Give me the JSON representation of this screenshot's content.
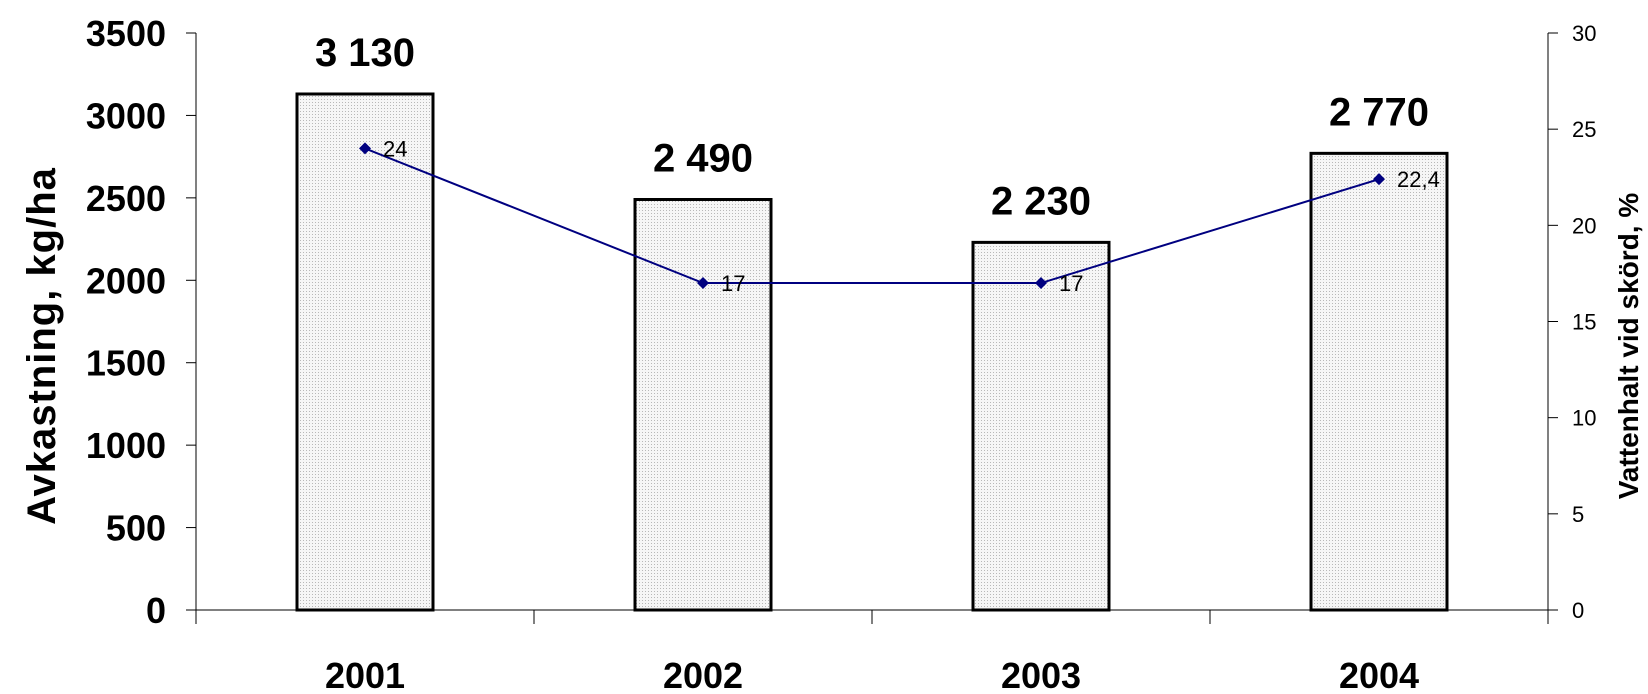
{
  "chart_data": {
    "type": "bar",
    "categories": [
      "2001",
      "2002",
      "2003",
      "2004"
    ],
    "series": [
      {
        "type": "bar",
        "axis": "left",
        "values": [
          3130,
          2490,
          2230,
          2770
        ],
        "labels": [
          "3 130",
          "2 490",
          "2 230",
          "2 770"
        ],
        "fill": "#ebebeb",
        "stroke": "#000000"
      },
      {
        "type": "line",
        "axis": "right",
        "values": [
          24,
          17,
          17,
          22.4
        ],
        "labels": [
          "24",
          "17",
          "17",
          "22,4"
        ],
        "color": "#000080",
        "marker": "diamond"
      }
    ],
    "ylabel": "Avkastning, kg/ha",
    "ylim": [
      0,
      3500
    ],
    "yticks": [
      "0",
      "500",
      "1000",
      "1500",
      "2000",
      "2500",
      "3000",
      "3500"
    ],
    "y2label": "Vattenhalt vid skörd, %",
    "y2lim": [
      0,
      30
    ],
    "y2ticks": [
      "0",
      "5",
      "10",
      "15",
      "20",
      "25",
      "30"
    ],
    "grid": false,
    "legend": "none"
  }
}
